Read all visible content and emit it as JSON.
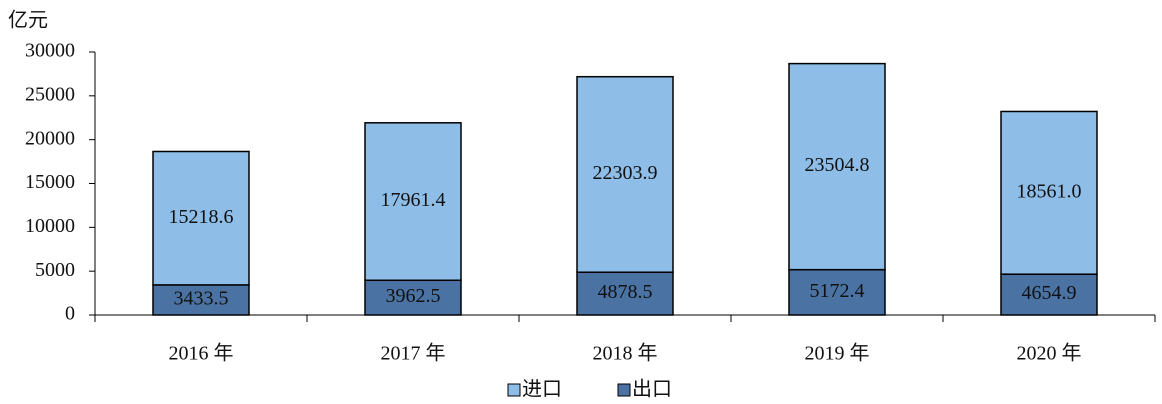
{
  "chart_data": {
    "type": "stacked_bar",
    "y_axis_label": "亿元",
    "categories": [
      "2016 年",
      "2017 年",
      "2018 年",
      "2019 年",
      "2020 年"
    ],
    "series": [
      {
        "name": "出口",
        "color": "#4a73a3",
        "values": [
          3433.5,
          3962.5,
          4878.5,
          5172.4,
          4654.9
        ],
        "value_labels": [
          "3433.5",
          "3962.5",
          "4878.5",
          "5172.4",
          "4654.9"
        ]
      },
      {
        "name": "进口",
        "color": "#8ebde7",
        "values": [
          15218.6,
          17961.4,
          22303.9,
          23504.8,
          18561.0
        ],
        "value_labels": [
          "15218.6",
          "17961.4",
          "22303.9",
          "23504.8",
          "18561.0"
        ]
      }
    ],
    "legend_order": [
      1,
      0
    ],
    "ylim": [
      0,
      30000
    ],
    "yticks": [
      0,
      5000,
      10000,
      15000,
      20000,
      25000,
      30000
    ],
    "grid": false
  }
}
